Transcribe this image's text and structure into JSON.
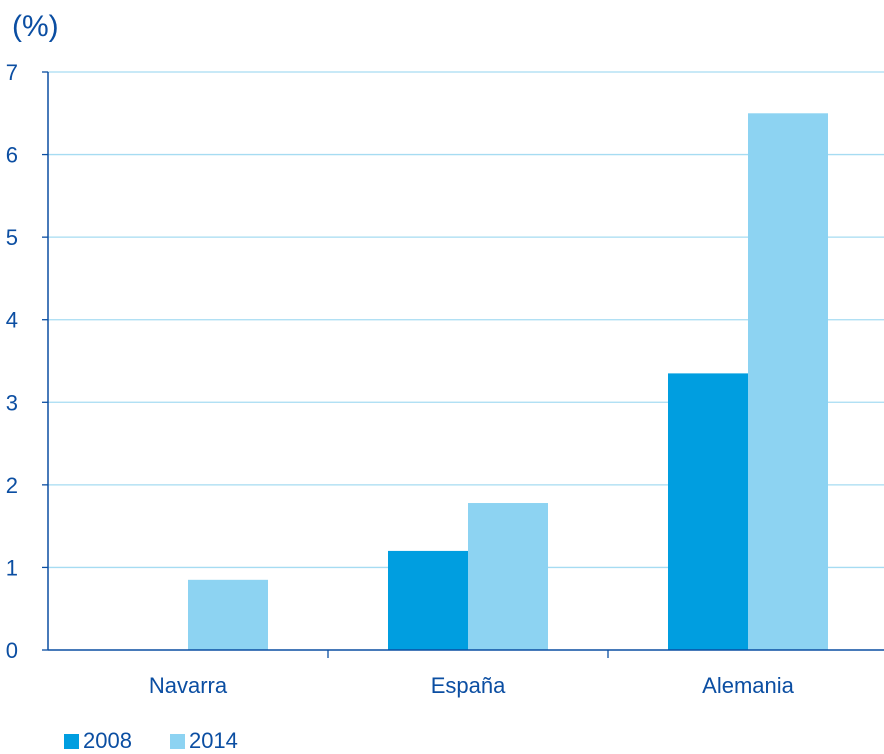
{
  "chart_data": {
    "type": "bar",
    "unit_label": "(%)",
    "categories": [
      "Navarra",
      "España",
      "Alemania"
    ],
    "series": [
      {
        "name": "2008",
        "color": "#009ee0",
        "values": [
          null,
          1.2,
          3.35
        ]
      },
      {
        "name": "2014",
        "color": "#8dd3f2",
        "values": [
          0.85,
          1.78,
          6.5
        ]
      }
    ],
    "ylim": [
      0,
      7
    ],
    "yticks": [
      "0",
      "1",
      "2",
      "3",
      "4",
      "5",
      "6",
      "7"
    ],
    "grid": true,
    "legend_position": "bottom-left",
    "axis_color": "#0b4ea2",
    "grid_color": "#a6dcf2"
  }
}
